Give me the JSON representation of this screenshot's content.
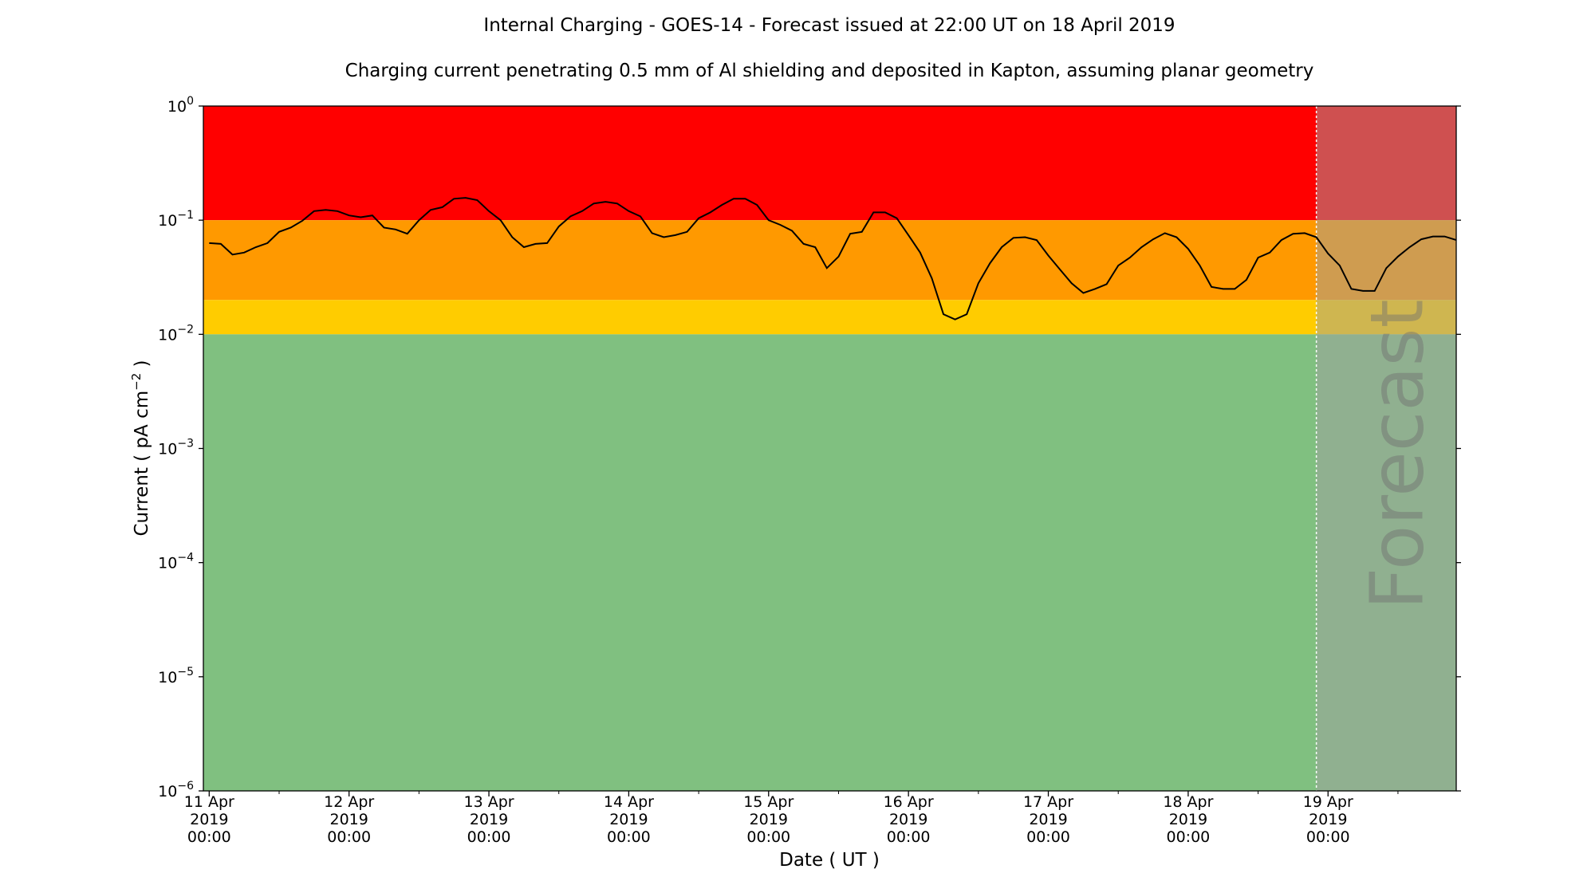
{
  "chart_data": {
    "type": "line",
    "title": "Internal Charging - GOES-14 - Forecast issued at 22:00 UT on 18 April 2019",
    "subtitle": "Charging current penetrating 0.5 mm of Al shielding and deposited in Kapton, assuming planar geometry",
    "xlabel": "Date ( UT )",
    "ylabel": "Current ( pA cm",
    "ylabel_exponent": "−2",
    "ylabel_end": " )",
    "log_y": true,
    "xlim": [
      "2019-04-10 23:00",
      "2019-04-19 22:00"
    ],
    "xticks": [
      {
        "value": "2019-04-11 00:00",
        "label": "11 Apr\n2019\n00:00"
      },
      {
        "value": "2019-04-12 00:00",
        "label": "12 Apr\n2019\n00:00"
      },
      {
        "value": "2019-04-13 00:00",
        "label": "13 Apr\n2019\n00:00"
      },
      {
        "value": "2019-04-14 00:00",
        "label": "14 Apr\n2019\n00:00"
      },
      {
        "value": "2019-04-15 00:00",
        "label": "15 Apr\n2019\n00:00"
      },
      {
        "value": "2019-04-16 00:00",
        "label": "16 Apr\n2019\n00:00"
      },
      {
        "value": "2019-04-17 00:00",
        "label": "17 Apr\n2019\n00:00"
      },
      {
        "value": "2019-04-18 00:00",
        "label": "18 Apr\n2019\n00:00"
      },
      {
        "value": "2019-04-19 00:00",
        "label": "19 Apr\n2019\n00:00"
      }
    ],
    "xminorticks": [
      "2019-04-11 12:00",
      "2019-04-12 12:00",
      "2019-04-13 12:00",
      "2019-04-14 12:00",
      "2019-04-15 12:00",
      "2019-04-16 12:00",
      "2019-04-17 12:00",
      "2019-04-18 12:00",
      "2019-04-19 12:00"
    ],
    "ylim": [
      1e-06,
      1
    ],
    "yticks": [
      {
        "value": 1e-06,
        "label": "10",
        "exponent": "−6"
      },
      {
        "value": 1e-05,
        "label": "10",
        "exponent": "−5"
      },
      {
        "value": 0.0001,
        "label": "10",
        "exponent": "−4"
      },
      {
        "value": 0.001,
        "label": "10",
        "exponent": "−3"
      },
      {
        "value": 0.01,
        "label": "10",
        "exponent": "−2"
      },
      {
        "value": 0.1,
        "label": "10",
        "exponent": "−1"
      },
      {
        "value": 1,
        "label": "10",
        "exponent": "0"
      }
    ],
    "bands": [
      {
        "from": 0.1,
        "to": 1,
        "color": "#ff0000"
      },
      {
        "from": 0.02,
        "to": 0.1,
        "color": "#ff9900"
      },
      {
        "from": 0.01,
        "to": 0.02,
        "color": "#ffcc00"
      },
      {
        "from": 1e-06,
        "to": 0.01,
        "color": "#80c080"
      }
    ],
    "forecast_start": "2019-04-18 22:00",
    "forecast_label": "Forecast",
    "forecast_color": "#a0a0a0",
    "color": "#000000",
    "x": [
      "2019-04-11 00:00",
      "2019-04-11 02:00",
      "2019-04-11 04:00",
      "2019-04-11 06:00",
      "2019-04-11 08:00",
      "2019-04-11 10:00",
      "2019-04-11 12:00",
      "2019-04-11 14:00",
      "2019-04-11 16:00",
      "2019-04-11 18:00",
      "2019-04-11 20:00",
      "2019-04-11 22:00",
      "2019-04-12 00:00",
      "2019-04-12 02:00",
      "2019-04-12 04:00",
      "2019-04-12 06:00",
      "2019-04-12 08:00",
      "2019-04-12 10:00",
      "2019-04-12 12:00",
      "2019-04-12 14:00",
      "2019-04-12 16:00",
      "2019-04-12 18:00",
      "2019-04-12 20:00",
      "2019-04-12 22:00",
      "2019-04-13 00:00",
      "2019-04-13 02:00",
      "2019-04-13 04:00",
      "2019-04-13 06:00",
      "2019-04-13 08:00",
      "2019-04-13 10:00",
      "2019-04-13 12:00",
      "2019-04-13 14:00",
      "2019-04-13 16:00",
      "2019-04-13 18:00",
      "2019-04-13 20:00",
      "2019-04-13 22:00",
      "2019-04-14 00:00",
      "2019-04-14 02:00",
      "2019-04-14 04:00",
      "2019-04-14 06:00",
      "2019-04-14 08:00",
      "2019-04-14 10:00",
      "2019-04-14 12:00",
      "2019-04-14 14:00",
      "2019-04-14 16:00",
      "2019-04-14 18:00",
      "2019-04-14 20:00",
      "2019-04-14 22:00",
      "2019-04-15 00:00",
      "2019-04-15 02:00",
      "2019-04-15 04:00",
      "2019-04-15 06:00",
      "2019-04-15 08:00",
      "2019-04-15 10:00",
      "2019-04-15 12:00",
      "2019-04-15 14:00",
      "2019-04-15 16:00",
      "2019-04-15 18:00",
      "2019-04-15 20:00",
      "2019-04-15 22:00",
      "2019-04-16 00:00",
      "2019-04-16 02:00",
      "2019-04-16 04:00",
      "2019-04-16 06:00",
      "2019-04-16 08:00",
      "2019-04-16 10:00",
      "2019-04-16 12:00",
      "2019-04-16 14:00",
      "2019-04-16 16:00",
      "2019-04-16 18:00",
      "2019-04-16 20:00",
      "2019-04-16 22:00",
      "2019-04-17 00:00",
      "2019-04-17 02:00",
      "2019-04-17 04:00",
      "2019-04-17 06:00",
      "2019-04-17 08:00",
      "2019-04-17 10:00",
      "2019-04-17 12:00",
      "2019-04-17 14:00",
      "2019-04-17 16:00",
      "2019-04-17 18:00",
      "2019-04-17 20:00",
      "2019-04-17 22:00",
      "2019-04-18 00:00",
      "2019-04-18 02:00",
      "2019-04-18 04:00",
      "2019-04-18 06:00",
      "2019-04-18 08:00",
      "2019-04-18 10:00",
      "2019-04-18 12:00",
      "2019-04-18 14:00",
      "2019-04-18 16:00",
      "2019-04-18 18:00",
      "2019-04-18 20:00",
      "2019-04-18 22:00",
      "2019-04-19 00:00",
      "2019-04-19 02:00",
      "2019-04-19 04:00",
      "2019-04-19 06:00",
      "2019-04-19 08:00",
      "2019-04-19 10:00",
      "2019-04-19 12:00",
      "2019-04-19 14:00",
      "2019-04-19 16:00",
      "2019-04-19 18:00",
      "2019-04-19 20:00",
      "2019-04-19 22:00"
    ],
    "values": [
      0.063,
      0.062,
      0.05,
      0.052,
      0.058,
      0.063,
      0.079,
      0.086,
      0.099,
      0.12,
      0.123,
      0.12,
      0.11,
      0.106,
      0.11,
      0.086,
      0.083,
      0.076,
      0.1,
      0.123,
      0.13,
      0.154,
      0.157,
      0.15,
      0.12,
      0.1,
      0.071,
      0.058,
      0.062,
      0.063,
      0.088,
      0.108,
      0.12,
      0.14,
      0.145,
      0.14,
      0.12,
      0.108,
      0.077,
      0.071,
      0.074,
      0.079,
      0.104,
      0.117,
      0.136,
      0.154,
      0.154,
      0.136,
      0.1,
      0.091,
      0.081,
      0.062,
      0.058,
      0.038,
      0.048,
      0.076,
      0.079,
      0.117,
      0.117,
      0.104,
      0.074,
      0.052,
      0.031,
      0.015,
      0.0135,
      0.015,
      0.028,
      0.042,
      0.058,
      0.07,
      0.071,
      0.067,
      0.049,
      0.037,
      0.028,
      0.023,
      0.025,
      0.0275,
      0.04,
      0.047,
      0.058,
      0.068,
      0.077,
      0.071,
      0.056,
      0.04,
      0.026,
      0.025,
      0.025,
      0.03,
      0.047,
      0.052,
      0.067,
      0.076,
      0.077,
      0.071,
      0.051,
      0.04,
      0.025,
      0.024,
      0.024,
      0.038,
      0.048,
      0.058,
      0.068,
      0.072,
      0.072,
      0.067
    ]
  }
}
